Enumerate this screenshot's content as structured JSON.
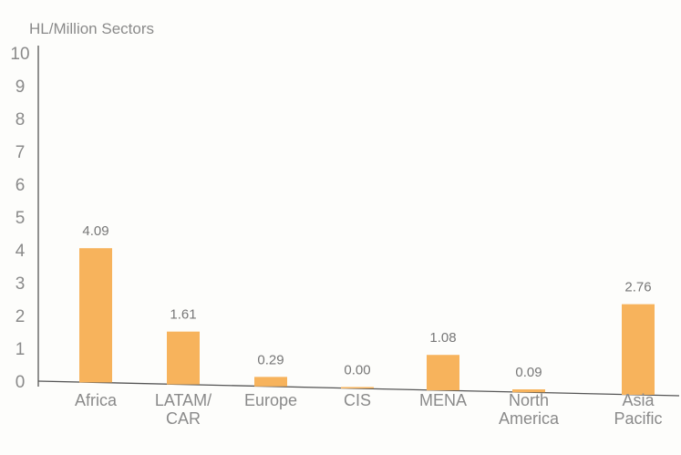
{
  "chart_data": {
    "type": "bar",
    "ylabel": "HL/Million Sectors",
    "ylim": [
      0,
      10
    ],
    "yticks": [
      "0",
      "1",
      "2",
      "3",
      "4",
      "5",
      "6",
      "7",
      "8",
      "9",
      "10"
    ],
    "categories": [
      [
        "Africa"
      ],
      [
        "LATAM/",
        "CAR"
      ],
      [
        "Europe"
      ],
      [
        "CIS"
      ],
      [
        "MENA"
      ],
      [
        "North",
        "America"
      ],
      [
        "Asia",
        "Pacific"
      ]
    ],
    "values": [
      4.09,
      1.61,
      0.29,
      0.0,
      1.08,
      0.09,
      2.76
    ],
    "value_labels": [
      "4.09",
      "1.61",
      "0.29",
      "0.00",
      "1.08",
      "0.09",
      "2.76"
    ],
    "bar_color": "#f7b35c",
    "axis_color": "#555555"
  }
}
